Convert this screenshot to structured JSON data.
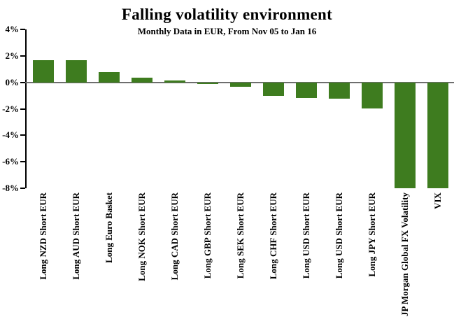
{
  "chart_data": {
    "type": "bar",
    "title": "Falling volatility environment",
    "subtitle": "Monthly Data in EUR, From Nov 05 to Jan 16",
    "categories": [
      "Long NZD Short EUR",
      "Long AUD Short EUR",
      "Long Euro Basket",
      "Long NOK Short EUR",
      "Long CAD Short EUR",
      "Long GBP Short EUR",
      "Long SEK Short EUR",
      "Long CHF Short EUR",
      "Long USD Short EUR",
      "Long USD Short EUR",
      "Long JPY Short EUR",
      "JP Morgan Global FX Volatility",
      "VIX"
    ],
    "values": [
      1.7,
      1.65,
      0.8,
      0.35,
      0.15,
      -0.1,
      -0.35,
      -1.0,
      -1.2,
      -1.25,
      -2.0,
      -8.0,
      -8.0
    ],
    "values_note": "last two bars extend to the -8% axis minimum (clipped at plot bottom)",
    "y_ticks": [
      "4%",
      "2%",
      "0%",
      "-2%",
      "-4%",
      "-6%",
      "-8%"
    ],
    "ylim": [
      -8,
      4
    ],
    "xlabel": "",
    "ylabel": "",
    "grid": false,
    "legend": false,
    "bar_color": "#3E7C1F",
    "zero_line_color": "#6E6E6E",
    "axis_color": "#000000"
  }
}
